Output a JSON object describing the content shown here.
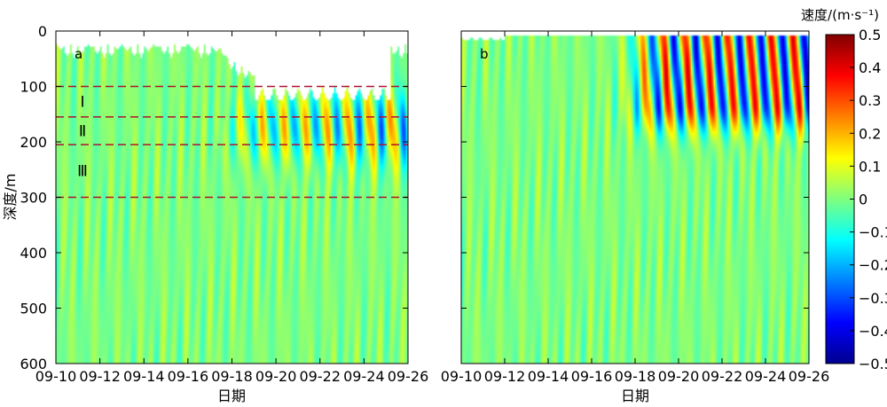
{
  "chart_data": {
    "type": "heatmap",
    "panels": [
      {
        "label": "a",
        "xlabel": "日期",
        "ylabel": "深度/m",
        "x_tick_labels": [
          "09-10",
          "09-12",
          "09-14",
          "09-16",
          "09-18",
          "09-20",
          "09-22",
          "09-24",
          "09-26"
        ],
        "xlim": [
          "09-10",
          "09-26"
        ],
        "y_ticks": [
          0,
          100,
          200,
          300,
          400,
          500,
          600
        ],
        "ylim": [
          600,
          0
        ],
        "y_inverted": true,
        "no_data_top_depth_m": 25,
        "no_data_top_depth_late_m": 100,
        "layer_lines_depth_m": [
          100,
          155,
          205,
          300
        ],
        "layer_labels": [
          {
            "text": "Ⅰ",
            "depth": 127
          },
          {
            "text": "Ⅱ",
            "depth": 180
          },
          {
            "text": "Ⅲ",
            "depth": 252
          }
        ],
        "line_color": "#b01030"
      },
      {
        "label": "b",
        "xlabel": "日期",
        "ylabel": "",
        "x_tick_labels": [
          "09-10",
          "09-12",
          "09-14",
          "09-16",
          "09-18",
          "09-20",
          "09-22",
          "09-24",
          "09-26"
        ],
        "xlim": [
          "09-10",
          "09-26"
        ],
        "y_ticks": [
          0,
          100,
          200,
          300,
          400,
          500,
          600
        ],
        "ylim": [
          600,
          0
        ],
        "y_inverted": true,
        "no_data_top_depth_m": 10
      }
    ],
    "colorbar": {
      "label": "速度/(m·s⁻¹)",
      "min": -0.5,
      "max": 0.5,
      "ticks": [
        0.5,
        0.4,
        0.3,
        0.2,
        0.1,
        0,
        -0.1,
        -0.2,
        -0.3,
        -0.4,
        -0.5
      ],
      "tick_labels": [
        "0.5",
        "0.4",
        "0.3",
        "0.2",
        "0.1",
        "0",
        "−0.1",
        "−0.2",
        "−0.3",
        "−0.4",
        "−0.5"
      ],
      "colormap": "jet"
    }
  }
}
